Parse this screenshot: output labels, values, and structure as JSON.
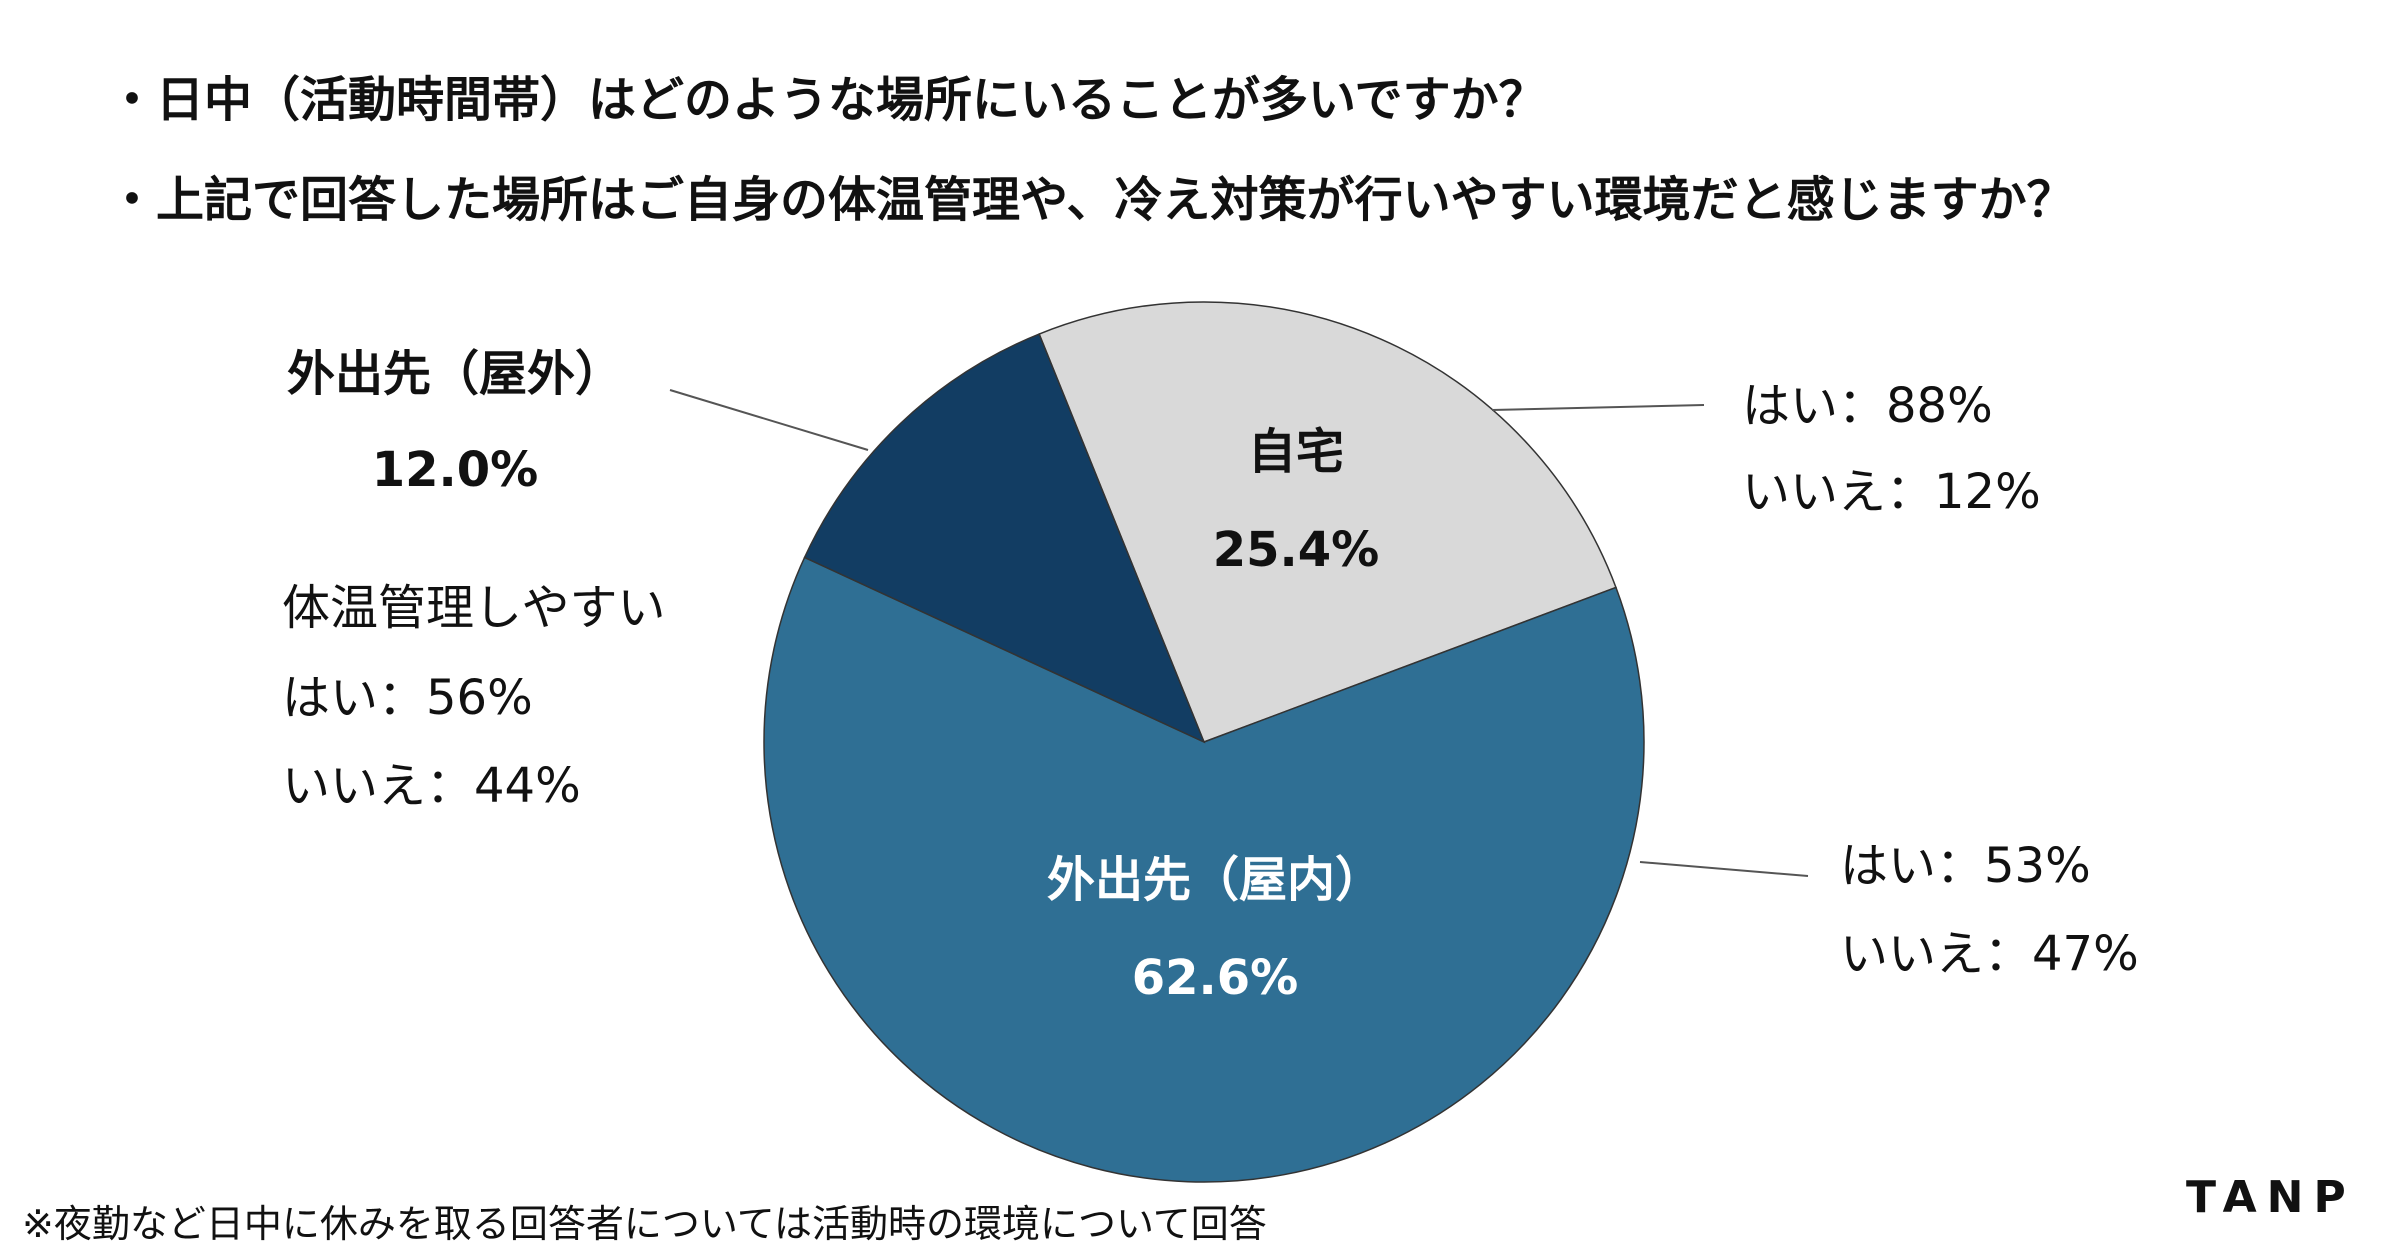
{
  "questions": [
    "・日中（活動時間帯）はどのような場所にいることが多いですか？",
    "・上記で回答した場所はご自身の体温管理や、冷え対策が行いやすい環境だと感じますか？"
  ],
  "chart_data": {
    "type": "pie",
    "slices": [
      {
        "name": "自宅",
        "value": 25.4,
        "value_label": "25.4%",
        "color": "#d9d9d9",
        "label_color": "#111111",
        "sub_yes": "はい：88%",
        "sub_no": "いいえ：12%"
      },
      {
        "name": "外出先（屋内）",
        "value": 62.6,
        "value_label": "62.6%",
        "color": "#2f6f94",
        "label_color": "#ffffff",
        "sub_yes": "はい：53%",
        "sub_no": "いいえ：47%"
      },
      {
        "name": "外出先（屋外）",
        "value": 12.0,
        "value_label": "12.0%",
        "color": "#123d63",
        "label_color": "#111111",
        "sub_yes": "はい：56%",
        "sub_no": "いいえ：44%"
      }
    ],
    "sub_heading": "体温管理しやすい",
    "start_angle_deg": -22,
    "direction": "clockwise",
    "border_color": "#333333"
  },
  "footnote": "※夜勤など日中に休みを取る回答者については活動時の環境について回答",
  "logo": "TANP"
}
